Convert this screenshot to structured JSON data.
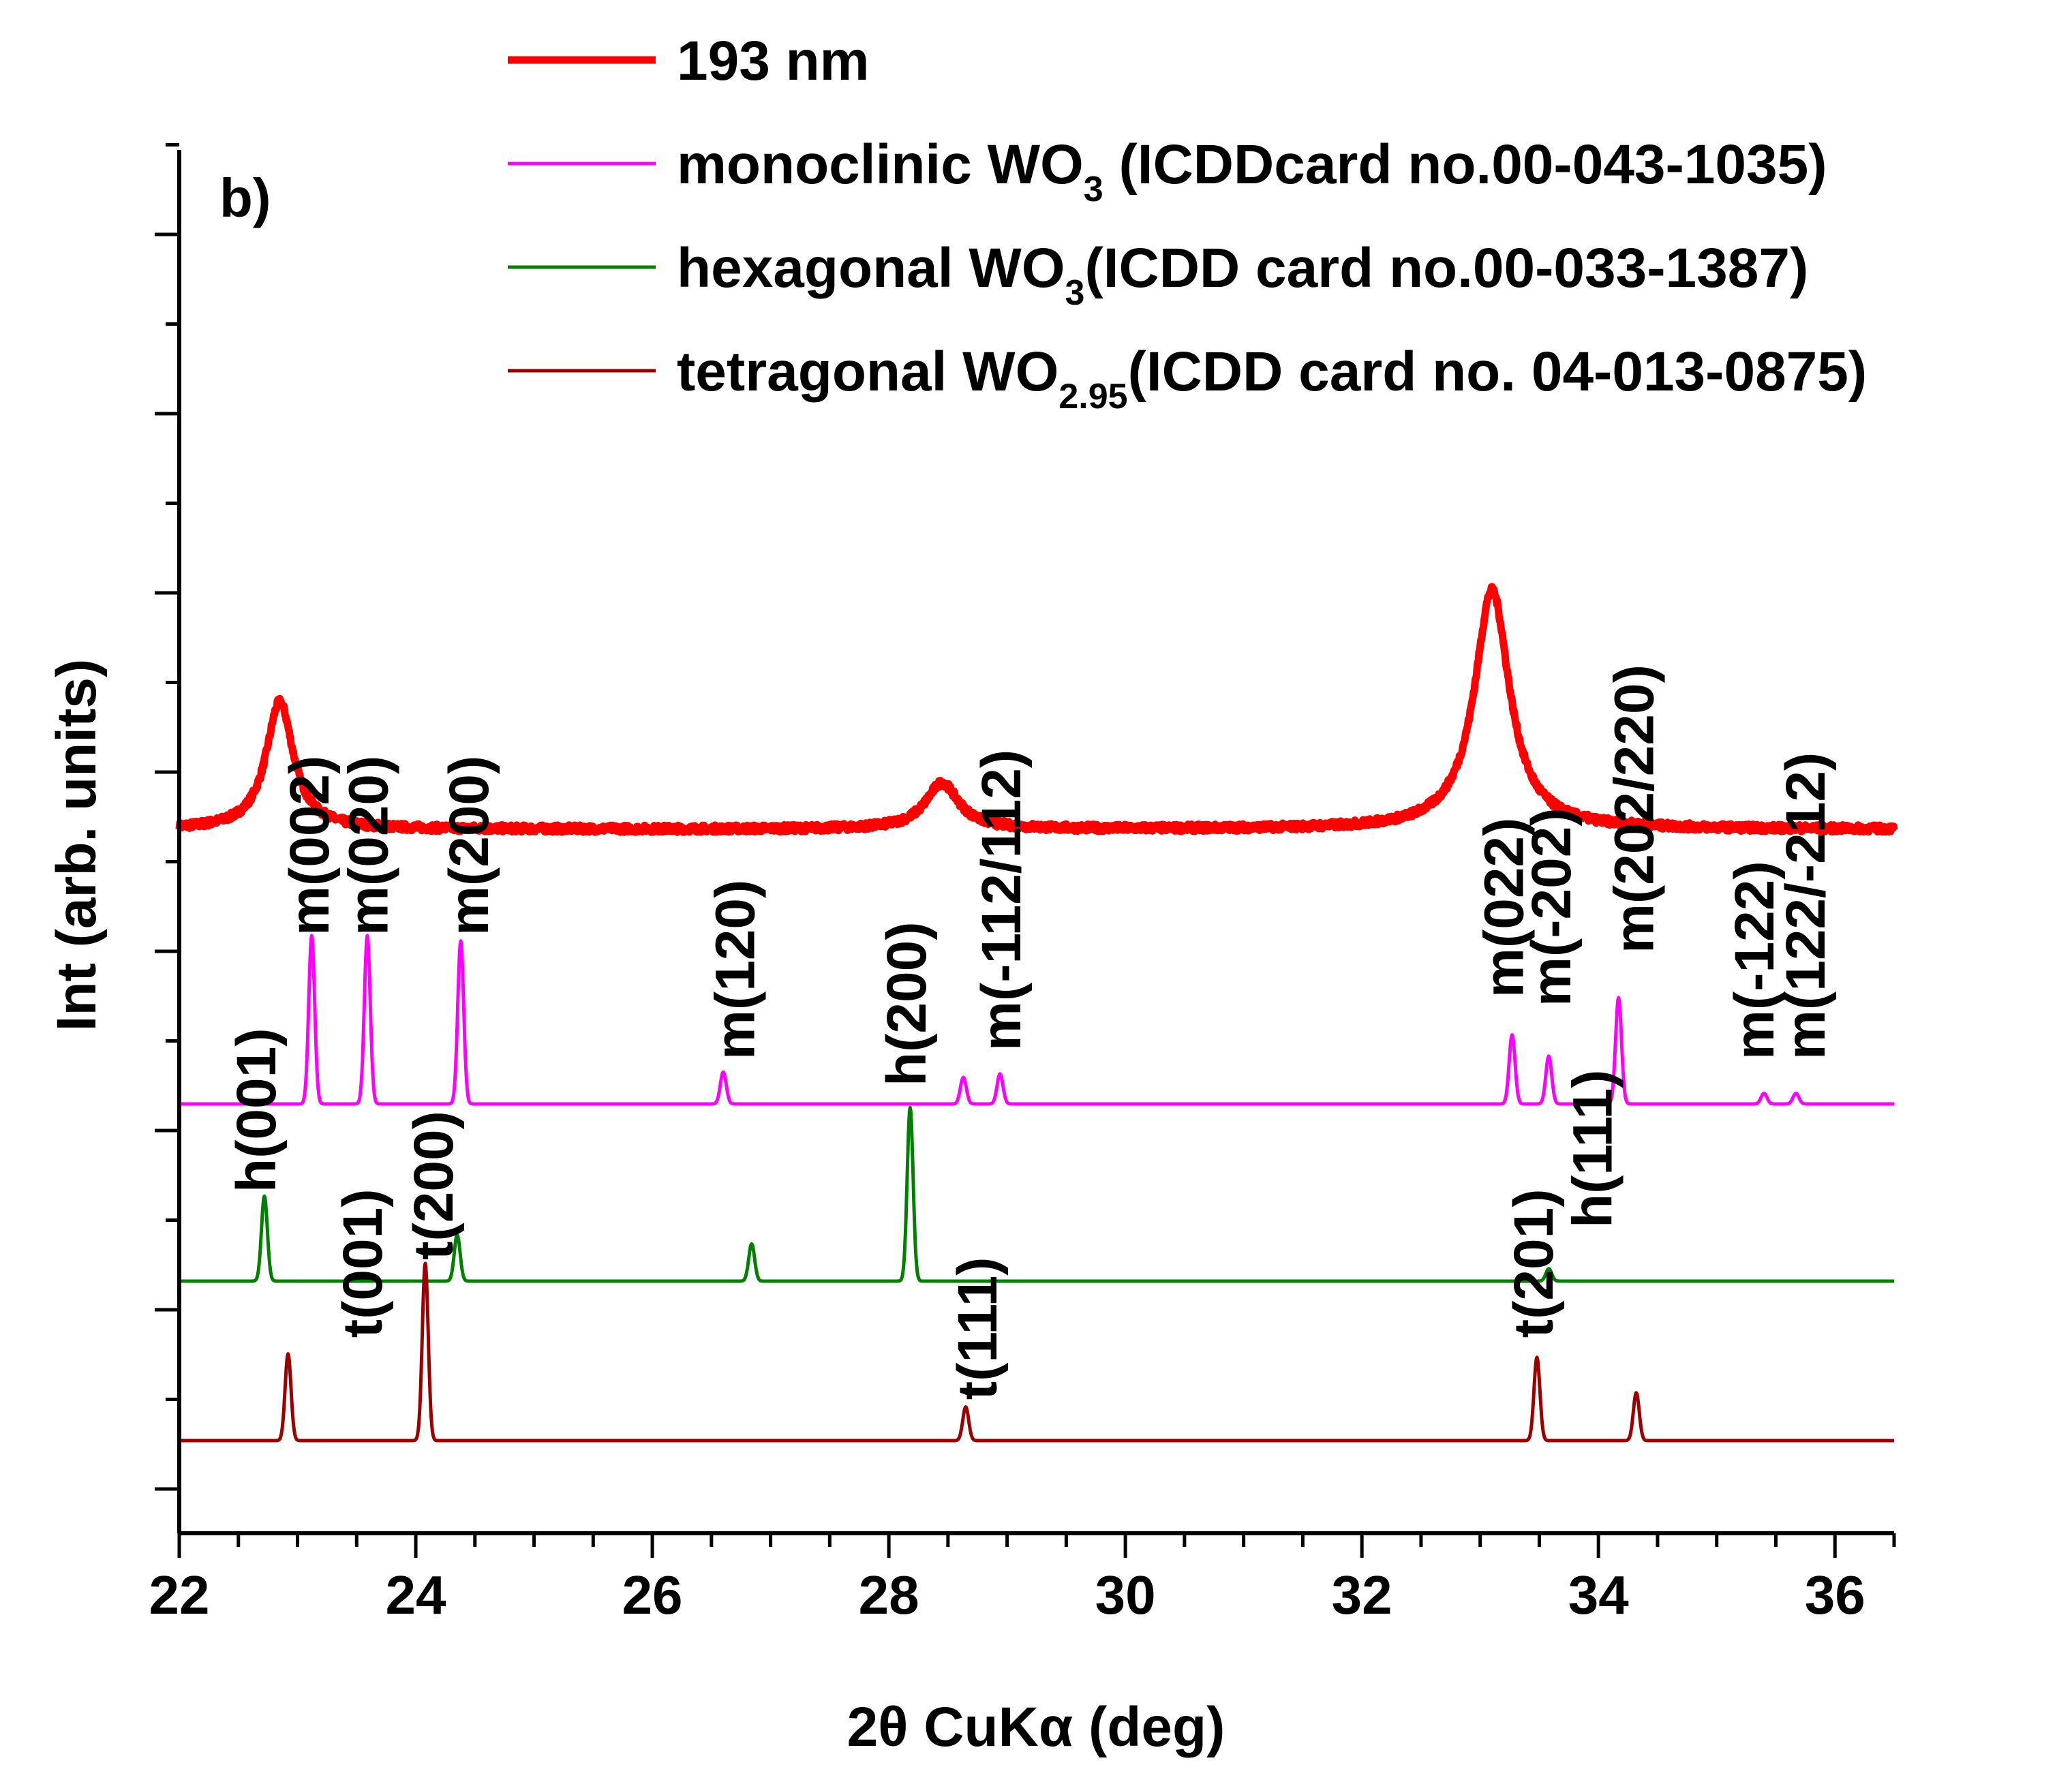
{
  "chart_data": {
    "type": "line",
    "panel_label": "b)",
    "xlabel": "2θ  CuKα (deg)",
    "ylabel": "Int (arb. units)",
    "xlim": [
      22,
      36.5
    ],
    "x_ticks": [
      22,
      24,
      26,
      28,
      30,
      32,
      34,
      36
    ],
    "y_tick_count": 16,
    "series": [
      {
        "name": "193 nm",
        "color": "#ff0000",
        "baseline": 3.55,
        "noise": 0.04,
        "peaks": [
          {
            "x": 22.85,
            "h": 0.72,
            "w": 0.14
          },
          {
            "x": 28.45,
            "h": 0.26,
            "w": 0.17
          },
          {
            "x": 33.1,
            "h": 1.35,
            "w": 0.18
          }
        ]
      },
      {
        "name": "monoclinic WO3 (ICDDcard no.00-043-1035)",
        "color": "#ff00ff",
        "baseline": 2.0,
        "peaks": [
          {
            "x": 23.12,
            "h": 0.95
          },
          {
            "x": 23.59,
            "h": 0.95
          },
          {
            "x": 24.38,
            "h": 0.92
          },
          {
            "x": 26.6,
            "h": 0.18
          },
          {
            "x": 28.63,
            "h": 0.15
          },
          {
            "x": 28.94,
            "h": 0.17
          },
          {
            "x": 33.27,
            "h": 0.39
          },
          {
            "x": 33.58,
            "h": 0.27
          },
          {
            "x": 34.17,
            "h": 0.6
          },
          {
            "x": 35.4,
            "h": 0.06
          },
          {
            "x": 35.67,
            "h": 0.06
          }
        ]
      },
      {
        "name": "hexagonal WO3(ICDD card no.00-033-1387)",
        "color": "#008000",
        "baseline": 1.0,
        "peaks": [
          {
            "x": 22.72,
            "h": 0.48
          },
          {
            "x": 24.35,
            "h": 0.26
          },
          {
            "x": 26.84,
            "h": 0.21
          },
          {
            "x": 28.18,
            "h": 0.98
          },
          {
            "x": 33.58,
            "h": 0.07
          }
        ]
      },
      {
        "name": "tetragonal WO2.95(ICDD card no. 04-013-0875)",
        "color": "#9b0000",
        "baseline": 0.1,
        "peaks": [
          {
            "x": 22.92,
            "h": 0.49
          },
          {
            "x": 24.08,
            "h": 1.0
          },
          {
            "x": 28.65,
            "h": 0.19
          },
          {
            "x": 33.48,
            "h": 0.47
          },
          {
            "x": 34.32,
            "h": 0.27
          }
        ]
      }
    ],
    "legend": [
      {
        "text": "193 nm",
        "sub": "",
        "after": ""
      },
      {
        "text": "monoclinic WO",
        "sub": "3",
        "after": " (ICDDcard no.00-043-1035)"
      },
      {
        "text": "hexagonal WO",
        "sub": "3",
        "after": "(ICDD card no.00-033-1387)"
      },
      {
        "text": "tetragonal WO",
        "sub": "2.95",
        "after": "(ICDD card no. 04-013-0875)"
      }
    ],
    "annotations": [
      {
        "text": "m(002)",
        "x": 23.1,
        "y": 2.95,
        "series": 1
      },
      {
        "text": "m(020)",
        "x": 23.6,
        "y": 2.95,
        "series": 1
      },
      {
        "text": "m(200)",
        "x": 24.45,
        "y": 2.95,
        "series": 1
      },
      {
        "text": "m(120)",
        "x": 26.7,
        "y": 2.25,
        "series": 1
      },
      {
        "text": "h(200)",
        "x": 28.15,
        "y": 2.1,
        "series": 2
      },
      {
        "text": "m(-112/112)",
        "x": 28.95,
        "y": 2.3,
        "series": 1
      },
      {
        "text": "m(022)",
        "x": 33.2,
        "y": 2.6,
        "series": 1
      },
      {
        "text": "m(-202)",
        "x": 33.6,
        "y": 2.55,
        "series": 1
      },
      {
        "text": "m(202/220)",
        "x": 34.3,
        "y": 2.85,
        "series": 1
      },
      {
        "text": "m(-122)",
        "x": 35.32,
        "y": 2.25,
        "series": 1
      },
      {
        "text": "m(122/-212)",
        "x": 35.75,
        "y": 2.25,
        "series": 1
      },
      {
        "text": "h(001)",
        "x": 22.65,
        "y": 1.5,
        "series": 2
      },
      {
        "text": "t(001)",
        "x": 23.55,
        "y": 0.68,
        "series": 3
      },
      {
        "text": "t(200)",
        "x": 24.15,
        "y": 1.12,
        "series": 3
      },
      {
        "text": "t(111)",
        "x": 28.75,
        "y": 0.33,
        "series": 3
      },
      {
        "text": "t(201)",
        "x": 33.45,
        "y": 0.68,
        "series": 3
      },
      {
        "text": "h(111)",
        "x": 33.95,
        "y": 1.3,
        "series": 2
      }
    ]
  }
}
